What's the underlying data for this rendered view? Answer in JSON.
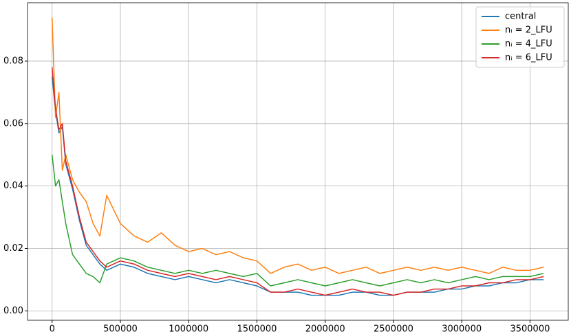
{
  "chart_data": {
    "type": "line",
    "x": [
      0,
      25000,
      50000,
      75000,
      100000,
      150000,
      200000,
      250000,
      300000,
      350000,
      400000,
      500000,
      600000,
      700000,
      800000,
      900000,
      1000000,
      1100000,
      1200000,
      1300000,
      1400000,
      1500000,
      1600000,
      1700000,
      1800000,
      1900000,
      2000000,
      2100000,
      2200000,
      2300000,
      2400000,
      2500000,
      2600000,
      2700000,
      2800000,
      2900000,
      3000000,
      3100000,
      3200000,
      3300000,
      3400000,
      3500000,
      3600000
    ],
    "series": [
      {
        "name": "central",
        "color": "#1f77b4",
        "values": [
          0.075,
          0.064,
          0.057,
          0.059,
          0.047,
          0.039,
          0.029,
          0.021,
          0.018,
          0.015,
          0.013,
          0.015,
          0.014,
          0.012,
          0.011,
          0.01,
          0.011,
          0.01,
          0.009,
          0.01,
          0.009,
          0.008,
          0.006,
          0.006,
          0.006,
          0.005,
          0.005,
          0.005,
          0.006,
          0.006,
          0.005,
          0.005,
          0.006,
          0.006,
          0.006,
          0.007,
          0.007,
          0.008,
          0.008,
          0.009,
          0.009,
          0.01,
          0.01
        ]
      },
      {
        "name": "nᵢ = 2_LFU",
        "color": "#ff7f0e",
        "values": [
          0.094,
          0.062,
          0.07,
          0.045,
          0.05,
          0.042,
          0.038,
          0.035,
          0.028,
          0.024,
          0.037,
          0.028,
          0.024,
          0.022,
          0.025,
          0.021,
          0.019,
          0.02,
          0.018,
          0.019,
          0.017,
          0.016,
          0.012,
          0.014,
          0.015,
          0.013,
          0.014,
          0.012,
          0.013,
          0.014,
          0.012,
          0.013,
          0.014,
          0.013,
          0.014,
          0.013,
          0.014,
          0.013,
          0.012,
          0.014,
          0.013,
          0.013,
          0.014
        ]
      },
      {
        "name": "nᵢ = 4_LFU",
        "color": "#2ca02c",
        "values": [
          0.05,
          0.04,
          0.042,
          0.035,
          0.028,
          0.018,
          0.015,
          0.012,
          0.011,
          0.009,
          0.015,
          0.017,
          0.016,
          0.014,
          0.013,
          0.012,
          0.013,
          0.012,
          0.013,
          0.012,
          0.011,
          0.012,
          0.008,
          0.009,
          0.01,
          0.009,
          0.008,
          0.009,
          0.01,
          0.009,
          0.008,
          0.009,
          0.01,
          0.009,
          0.01,
          0.009,
          0.01,
          0.011,
          0.01,
          0.011,
          0.011,
          0.011,
          0.012
        ]
      },
      {
        "name": "nᵢ = 6_LFU",
        "color": "#d62728",
        "values": [
          0.078,
          0.065,
          0.058,
          0.06,
          0.048,
          0.04,
          0.03,
          0.022,
          0.019,
          0.016,
          0.014,
          0.016,
          0.015,
          0.013,
          0.012,
          0.011,
          0.012,
          0.011,
          0.01,
          0.011,
          0.01,
          0.009,
          0.006,
          0.006,
          0.007,
          0.006,
          0.005,
          0.006,
          0.007,
          0.006,
          0.006,
          0.005,
          0.006,
          0.006,
          0.007,
          0.007,
          0.008,
          0.008,
          0.009,
          0.009,
          0.01,
          0.01,
          0.011
        ]
      }
    ],
    "xlim": [
      -180000,
      3780000
    ],
    "ylim": [
      -0.003,
      0.0987
    ],
    "xticks": [
      0,
      500000,
      1000000,
      1500000,
      2000000,
      2500000,
      3000000,
      3500000
    ],
    "yticks": [
      {
        "value": 0,
        "label": "0.00"
      },
      {
        "value": 0.02,
        "label": "0.02"
      },
      {
        "value": 0.04,
        "label": "0.04"
      },
      {
        "value": 0.06,
        "label": "0.06"
      },
      {
        "value": 0.08,
        "label": "0.08"
      }
    ],
    "grid": true,
    "legend": "upper-right"
  }
}
